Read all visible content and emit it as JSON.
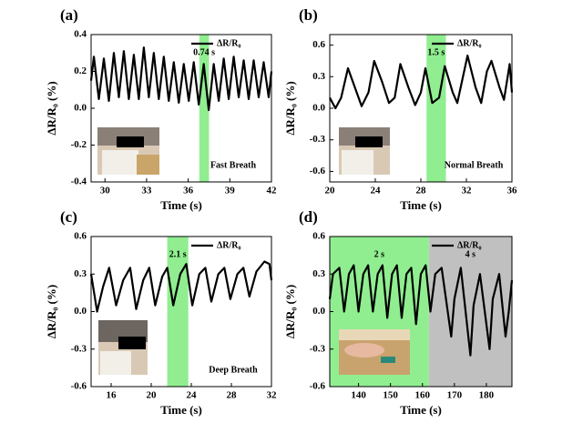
{
  "chart_data": [
    {
      "type": "line",
      "label": "(a)",
      "xlabel": "Time (s)",
      "ylabel": "ΔR/R₀ (%)",
      "annotation": "Fast Breath",
      "legend": "upper right",
      "xlim": [
        29,
        42
      ],
      "xticks": [
        30,
        33,
        36,
        39,
        42
      ],
      "ylim": [
        -0.4,
        0.4
      ],
      "yticks": [
        -0.4,
        -0.2,
        {
          "value": 0,
          "label": "0.0"
        },
        0.2,
        0.4
      ],
      "bands": [
        {
          "x": [
            36.8,
            37.5
          ],
          "color": "#90ee90",
          "label": "0.74 s"
        }
      ],
      "x": [
        29.0,
        29.2,
        29.56,
        29.92,
        30.28,
        30.64,
        31.0,
        31.36,
        31.72,
        32.08,
        32.44,
        32.8,
        33.16,
        33.52,
        33.88,
        34.24,
        34.6,
        34.96,
        35.32,
        35.68,
        36.04,
        36.4,
        36.76,
        37.12,
        37.48,
        37.84,
        38.2,
        38.56,
        38.92,
        39.28,
        39.64,
        40.0,
        40.36,
        40.72,
        41.08,
        41.44,
        41.8,
        42.0
      ],
      "series": [
        {
          "name": "ΔR/R₀",
          "color": "#000000",
          "values": [
            0.15,
            0.28,
            0.05,
            0.27,
            0.04,
            0.3,
            0.06,
            0.31,
            0.05,
            0.29,
            0.05,
            0.33,
            0.06,
            0.3,
            0.05,
            0.28,
            0.04,
            0.25,
            0.03,
            0.24,
            0.04,
            0.25,
            0.02,
            0.24,
            -0.01,
            0.24,
            0.04,
            0.27,
            0.05,
            0.28,
            0.06,
            0.26,
            0.05,
            0.26,
            0.06,
            0.25,
            0.06,
            0.2
          ]
        }
      ]
    },
    {
      "type": "line",
      "label": "(b)",
      "xlabel": "Time (s)",
      "ylabel": "ΔR/R₀ (%)",
      "annotation": "Normal Breath",
      "legend": "upper right",
      "xlim": [
        20,
        36
      ],
      "xticks": [
        20,
        24,
        28,
        32,
        36
      ],
      "ylim": [
        -0.7,
        0.7
      ],
      "yticks": [
        -0.6,
        -0.3,
        {
          "value": 0,
          "label": "0.0"
        },
        0.3,
        0.6
      ],
      "bands": [
        {
          "x": [
            28.5,
            30.2
          ],
          "color": "#90ee90",
          "label": "1.5 s"
        }
      ],
      "x": [
        20,
        20.5,
        21.0,
        21.6,
        22.2,
        22.8,
        23.4,
        23.9,
        24.6,
        25.2,
        25.7,
        26.2,
        26.9,
        27.5,
        28.0,
        28.4,
        29.0,
        29.6,
        30.1,
        30.8,
        31.2,
        31.7,
        32.1,
        32.8,
        33.3,
        33.8,
        34.2,
        34.9,
        35.3,
        35.8,
        36
      ],
      "series": [
        {
          "name": "ΔR/R₀",
          "color": "#000000",
          "values": [
            0.1,
            0.0,
            0.1,
            0.38,
            0.2,
            0.02,
            0.15,
            0.45,
            0.25,
            0.05,
            0.1,
            0.42,
            0.2,
            0.03,
            0.15,
            0.38,
            0.05,
            0.1,
            0.4,
            0.15,
            0.05,
            0.3,
            0.5,
            0.2,
            0.05,
            0.35,
            0.45,
            0.2,
            0.08,
            0.42,
            0.15
          ]
        }
      ]
    },
    {
      "type": "line",
      "label": "(c)",
      "xlabel": "Time (s)",
      "ylabel": "ΔR/R₀ (%)",
      "annotation": "Deep Breath",
      "legend": "upper right",
      "xlim": [
        14,
        32
      ],
      "xticks": [
        16,
        20,
        24,
        28,
        32
      ],
      "ylim": [
        -0.6,
        0.6
      ],
      "yticks": [
        -0.6,
        -0.3,
        {
          "value": 0,
          "label": "0.0"
        },
        0.3,
        0.6
      ],
      "bands": [
        {
          "x": [
            21.6,
            23.7
          ],
          "color": "#90ee90",
          "label": "2.1 s"
        }
      ],
      "x": [
        14,
        14.6,
        15.2,
        15.8,
        16.5,
        17.2,
        17.9,
        18.5,
        19.2,
        19.8,
        20.4,
        21.1,
        21.6,
        22.2,
        22.9,
        23.5,
        24.1,
        24.8,
        25.4,
        26.0,
        26.7,
        27.3,
        27.9,
        28.6,
        29.2,
        29.8,
        30.5,
        31.3,
        31.8,
        32
      ],
      "series": [
        {
          "name": "ΔR/R₀",
          "color": "#000000",
          "values": [
            0.3,
            0.0,
            0.2,
            0.35,
            0.05,
            0.25,
            0.35,
            0.02,
            0.25,
            0.35,
            0.05,
            0.28,
            0.35,
            0.05,
            0.3,
            0.38,
            0.05,
            0.3,
            0.35,
            0.08,
            0.3,
            0.35,
            0.1,
            0.3,
            0.35,
            0.12,
            0.32,
            0.4,
            0.38,
            0.25
          ]
        }
      ]
    },
    {
      "type": "line",
      "label": "(d)",
      "xlabel": "Time (s)",
      "ylabel": "ΔR/R₀ (%)",
      "legend": "upper right",
      "xlim": [
        131,
        188
      ],
      "xticks": [
        140,
        150,
        160,
        170,
        180
      ],
      "ylim": [
        -0.6,
        0.6
      ],
      "yticks": [
        -0.6,
        -0.3,
        {
          "value": 0,
          "label": "0.0"
        },
        0.3,
        0.6
      ],
      "bands": [
        {
          "x": [
            131,
            162
          ],
          "color": "#90ee90",
          "label": "2 s"
        },
        {
          "x": [
            162,
            188
          ],
          "color": "#c0c0c0",
          "label": "4 s"
        }
      ],
      "x": [
        131,
        132,
        134,
        135.5,
        137,
        138.5,
        140,
        141.5,
        143,
        144.5,
        146,
        147.5,
        149,
        150.5,
        152,
        153.5,
        155,
        156.5,
        158,
        159.5,
        161,
        162.5,
        164,
        166,
        169,
        170,
        172,
        175,
        176,
        178,
        181,
        182,
        184,
        186,
        187,
        188
      ],
      "series": [
        {
          "name": "ΔR/R₀",
          "color": "#000000",
          "values": [
            0.1,
            0.3,
            0.35,
            0.0,
            0.3,
            0.37,
            0.0,
            0.3,
            0.37,
            0.0,
            0.3,
            0.37,
            -0.05,
            0.3,
            0.37,
            -0.05,
            0.3,
            0.35,
            -0.1,
            0.3,
            0.37,
            0.0,
            0.3,
            0.35,
            -0.2,
            0.1,
            0.35,
            -0.35,
            0.05,
            0.3,
            -0.3,
            0.1,
            0.3,
            -0.2,
            0.0,
            0.25
          ]
        }
      ]
    }
  ]
}
